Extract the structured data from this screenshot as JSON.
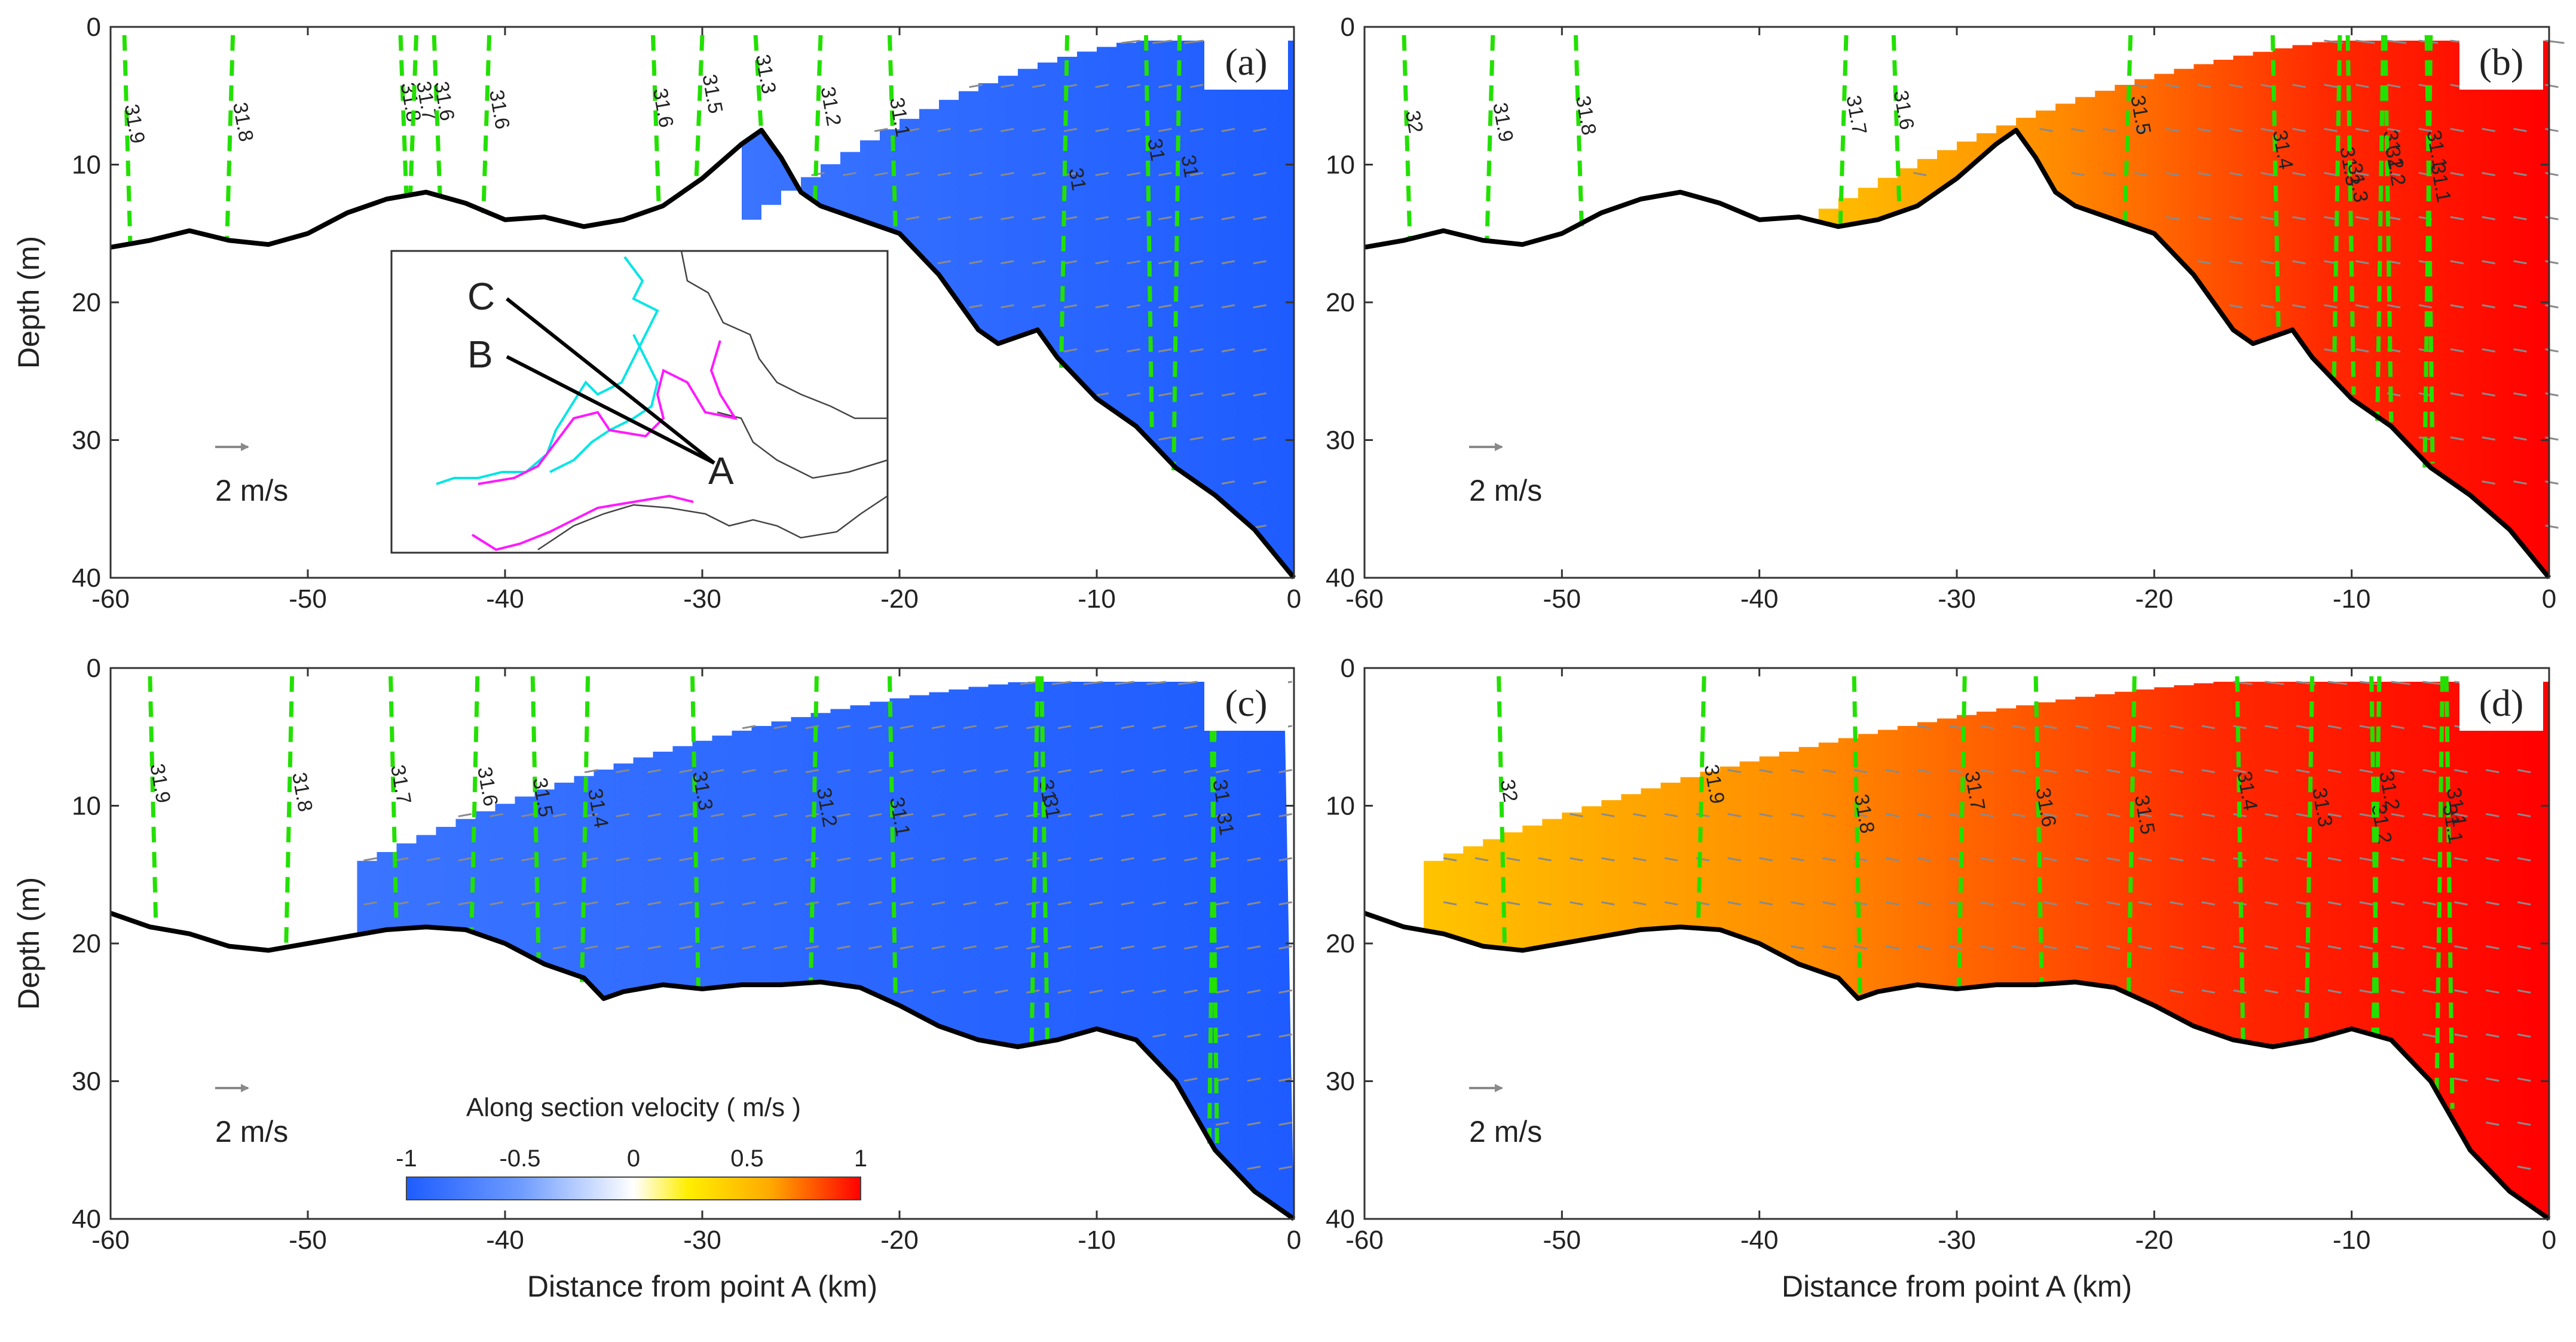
{
  "figure_title": "",
  "colorbar": {
    "title": "Along section velocity ( m/s )",
    "ticks": [
      "-1",
      "-0.5",
      "0",
      "0.5",
      "1"
    ],
    "tick_values": [
      -1,
      -0.5,
      0,
      0.5,
      1
    ],
    "range": [
      -1,
      1
    ],
    "colors": [
      "#1e5cff",
      "#6e9bff",
      "#ffffff",
      "#ffee00",
      "#ffaa00",
      "#ff0000"
    ]
  },
  "scale_arrow_label": "2 m/s",
  "inset": {
    "labels": [
      "C",
      "B",
      "A"
    ]
  },
  "chart_data": [
    {
      "panel": "a",
      "label": "(a)",
      "type": "section-contour",
      "xlabel": "",
      "ylabel": "Depth (m)",
      "xlim": [
        -60,
        0
      ],
      "ylim": [
        0,
        40
      ],
      "xticks": [
        "-60",
        "-50",
        "-40",
        "-30",
        "-20",
        "-10",
        "0"
      ],
      "yticks": [
        "0",
        "10",
        "20",
        "30",
        "40"
      ],
      "velocity_sign": "negative",
      "fill_start_km": -28,
      "velocity_magnitude": -0.9,
      "bathymetry": {
        "x": [
          -60,
          -58,
          -56,
          -54,
          -52,
          -50,
          -48,
          -46,
          -44,
          -42,
          -40,
          -38,
          -36,
          -34,
          -32,
          -30,
          -28,
          -27,
          -26,
          -25,
          -24,
          -22,
          -20,
          -18,
          -16,
          -15,
          -14,
          -13,
          -12,
          -10,
          -8,
          -6,
          -4,
          -2,
          0
        ],
        "depth": [
          16,
          15.5,
          14.8,
          15.5,
          15.8,
          15,
          13.5,
          12.5,
          12,
          12.8,
          14,
          13.8,
          14.5,
          14,
          13,
          11,
          8.5,
          7.5,
          9.5,
          12,
          13,
          14,
          15,
          18,
          22,
          23,
          22.5,
          22,
          24,
          27,
          29,
          32,
          34,
          36.5,
          40
        ]
      },
      "isohalines": [
        {
          "value": "31.9",
          "x": -59.3
        },
        {
          "value": "31.8",
          "x": -53.8
        },
        {
          "value": "31.8",
          "x": -45.3
        },
        {
          "value": "31.7",
          "x": -44.5
        },
        {
          "value": "31.6",
          "x": -43.6
        },
        {
          "value": "31.6",
          "x": -40.8
        },
        {
          "value": "31.6",
          "x": -32.5
        },
        {
          "value": "31.5",
          "x": -30
        },
        {
          "value": "31.3",
          "x": -27.3
        },
        {
          "value": "31.2",
          "x": -24
        },
        {
          "value": "31.1",
          "x": -20.5
        },
        {
          "value": "31",
          "x": -11.5
        },
        {
          "value": "31",
          "x": -7.5
        },
        {
          "value": "31",
          "x": -5.8
        }
      ]
    },
    {
      "panel": "b",
      "label": "(b)",
      "type": "section-contour",
      "xlabel": "",
      "ylabel": "",
      "xlim": [
        -60,
        0
      ],
      "ylim": [
        0,
        40
      ],
      "xticks": [
        "-60",
        "-50",
        "-40",
        "-30",
        "-20",
        "-10",
        "0"
      ],
      "yticks": [
        "0",
        "10",
        "20",
        "30",
        "40"
      ],
      "velocity_sign": "positive",
      "fill_start_km": -38,
      "velocity_magnitude": 0.9,
      "bathymetry": {
        "x": [
          -60,
          -58,
          -56,
          -54,
          -52,
          -50,
          -48,
          -46,
          -44,
          -42,
          -40,
          -38,
          -36,
          -34,
          -32,
          -30,
          -28,
          -27,
          -26,
          -25,
          -24,
          -22,
          -20,
          -18,
          -16,
          -15,
          -14,
          -13,
          -12,
          -10,
          -8,
          -6,
          -4,
          -2,
          0
        ],
        "depth": [
          16,
          15.5,
          14.8,
          15.5,
          15.8,
          15,
          13.5,
          12.5,
          12,
          12.8,
          14,
          13.8,
          14.5,
          14,
          13,
          11,
          8.5,
          7.5,
          9.5,
          12,
          13,
          14,
          15,
          18,
          22,
          23,
          22.5,
          22,
          24,
          27,
          29,
          32,
          34,
          36.5,
          40
        ]
      },
      "isohalines": [
        {
          "value": "32",
          "x": -58
        },
        {
          "value": "31.9",
          "x": -53.5
        },
        {
          "value": "31.8",
          "x": -49.3
        },
        {
          "value": "31.7",
          "x": -35.6
        },
        {
          "value": "31.6",
          "x": -33.2
        },
        {
          "value": "31.5",
          "x": -21.2
        },
        {
          "value": "31.4",
          "x": -14
        },
        {
          "value": "31.3",
          "x": -10.6
        },
        {
          "value": "31.3",
          "x": -10.2
        },
        {
          "value": "31.2",
          "x": -8.4
        },
        {
          "value": "31.2",
          "x": -8.3
        },
        {
          "value": "31.1",
          "x": -6
        },
        {
          "value": "31.1",
          "x": -6.2
        }
      ]
    },
    {
      "panel": "c",
      "label": "(c)",
      "type": "section-contour",
      "xlabel": "Distance from point A (km)",
      "ylabel": "Depth (m)",
      "xlim": [
        -60,
        0
      ],
      "ylim": [
        0,
        40
      ],
      "xticks": [
        "-60",
        "-50",
        "-40",
        "-30",
        "-20",
        "-10",
        "0"
      ],
      "yticks": [
        "0",
        "10",
        "20",
        "30",
        "40"
      ],
      "velocity_sign": "negative",
      "fill_start_km": -47.5,
      "velocity_magnitude": -0.8,
      "bathymetry": {
        "x": [
          -60,
          -58,
          -56,
          -54,
          -52,
          -50,
          -48,
          -46,
          -44,
          -42,
          -40,
          -38,
          -36,
          -35,
          -34,
          -32,
          -30,
          -28,
          -26,
          -24,
          -22,
          -20,
          -18,
          -16,
          -14,
          -12,
          -10,
          -8,
          -6,
          -4,
          -2,
          0
        ],
        "depth": [
          17.8,
          18.8,
          19.3,
          20.2,
          20.5,
          20,
          19.5,
          19,
          18.8,
          19,
          20,
          21.5,
          22.5,
          24,
          23.5,
          23,
          23.3,
          23,
          23,
          22.8,
          23.2,
          24.5,
          26,
          27,
          27.5,
          27,
          26.2,
          27,
          30,
          35,
          38,
          40
        ]
      },
      "isohalines": [
        {
          "value": "31.9",
          "x": -58
        },
        {
          "value": "31.8",
          "x": -50.8
        },
        {
          "value": "31.7",
          "x": -45.8
        },
        {
          "value": "31.6",
          "x": -41.4
        },
        {
          "value": "31.5",
          "x": -38.6
        },
        {
          "value": "31.4",
          "x": -35.8
        },
        {
          "value": "31.3",
          "x": -30.5
        },
        {
          "value": "31.2",
          "x": -24.2
        },
        {
          "value": "31.1",
          "x": -20.5
        },
        {
          "value": "31",
          "x": -13
        },
        {
          "value": "31",
          "x": -12.8
        },
        {
          "value": "31",
          "x": -4
        },
        {
          "value": "31",
          "x": -4.2
        }
      ]
    },
    {
      "panel": "d",
      "label": "(d)",
      "type": "section-contour",
      "xlabel": "Distance from point A (km)",
      "ylabel": "",
      "xlim": [
        -60,
        0
      ],
      "ylim": [
        0,
        40
      ],
      "xticks": [
        "-60",
        "-50",
        "-40",
        "-30",
        "-20",
        "-10",
        "0"
      ],
      "yticks": [
        "0",
        "10",
        "20",
        "30",
        "40"
      ],
      "velocity_sign": "positive",
      "fill_start_km": -57,
      "velocity_magnitude": 0.9,
      "bathymetry": {
        "x": [
          -60,
          -58,
          -56,
          -54,
          -52,
          -50,
          -48,
          -46,
          -44,
          -42,
          -40,
          -38,
          -36,
          -35,
          -34,
          -32,
          -30,
          -28,
          -26,
          -24,
          -22,
          -20,
          -18,
          -16,
          -14,
          -12,
          -10,
          -8,
          -6,
          -4,
          -2,
          0
        ],
        "depth": [
          17.8,
          18.8,
          19.3,
          20.2,
          20.5,
          20,
          19.5,
          19,
          18.8,
          19,
          20,
          21.5,
          22.5,
          24,
          23.5,
          23,
          23.3,
          23,
          23,
          22.8,
          23.2,
          24.5,
          26,
          27,
          27.5,
          27,
          26.2,
          27,
          30,
          35,
          38,
          40
        ]
      },
      "isohalines": [
        {
          "value": "32",
          "x": -53.2
        },
        {
          "value": "31.9",
          "x": -42.8
        },
        {
          "value": "31.8",
          "x": -35.2
        },
        {
          "value": "31.7",
          "x": -29.6
        },
        {
          "value": "31.6",
          "x": -26
        },
        {
          "value": "31.5",
          "x": -21
        },
        {
          "value": "31.4",
          "x": -15.8
        },
        {
          "value": "31.3",
          "x": -12
        },
        {
          "value": "31.2",
          "x": -9
        },
        {
          "value": "31.2",
          "x": -8.6
        },
        {
          "value": "31.1",
          "x": -5.2
        },
        {
          "value": "31.1",
          "x": -5.4
        }
      ]
    }
  ]
}
